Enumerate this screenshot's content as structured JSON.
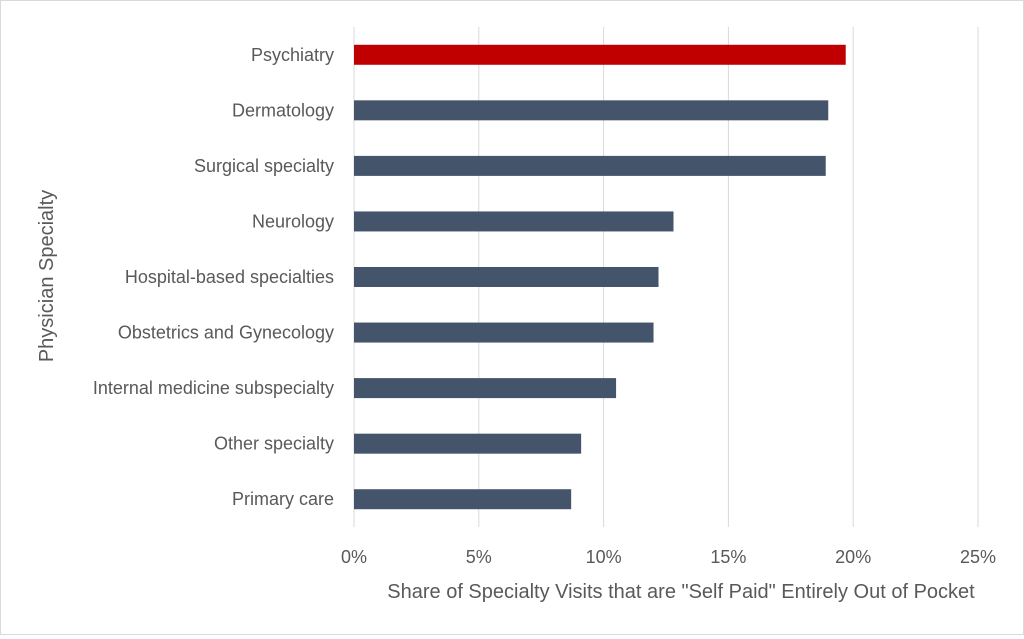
{
  "chart_data": {
    "type": "bar",
    "orientation": "horizontal",
    "categories": [
      "Psychiatry",
      "Dermatology",
      "Surgical specialty",
      "Neurology",
      "Hospital-based specialties",
      "Obstetrics and Gynecology",
      "Internal medicine subspecialty",
      "Other specialty",
      "Primary care"
    ],
    "values": [
      19.7,
      19.0,
      18.9,
      12.8,
      12.2,
      12.0,
      10.5,
      9.1,
      8.7
    ],
    "highlight": "Psychiatry",
    "colors": {
      "bar": "#44546a",
      "highlight": "#c00000",
      "grid": "#d9d9d9",
      "text": "#595959"
    },
    "xlim": [
      0,
      25
    ],
    "xticks": [
      0,
      5,
      10,
      15,
      20,
      25
    ],
    "tick_format": "%",
    "grid": true,
    "xlabel": "Share of Specialty Visits that are \"Self Paid\" Entirely Out of Pocket",
    "ylabel": "Physician Specialty"
  }
}
